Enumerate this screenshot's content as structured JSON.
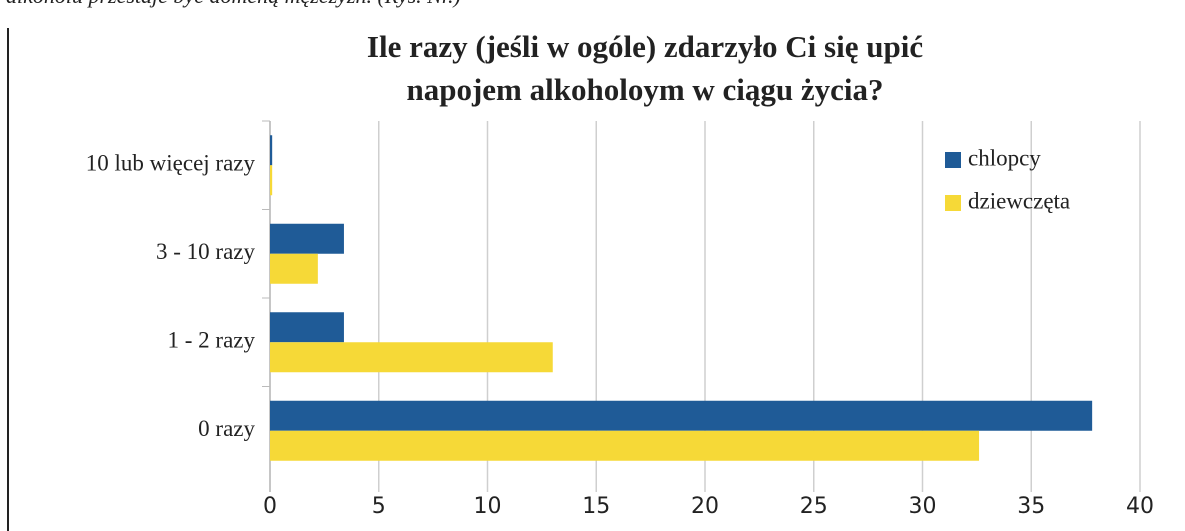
{
  "caption": "alkoholu przestaje być domeną mężczyzn. (Rys. Nr.)",
  "chart_data": {
    "type": "bar",
    "orientation": "horizontal",
    "title": [
      "Ile razy (jeśli w ogóle) zdarzyło Ci się upić",
      "napojem alkoholoym w ciągu życia?"
    ],
    "categories": [
      "10 lub więcej razy",
      "3 - 10 razy",
      "1 - 2 razy",
      "0 razy"
    ],
    "series": [
      {
        "name": "chlopcy",
        "color": "#1f5b97",
        "values": [
          0.1,
          3.4,
          3.4,
          37.8
        ]
      },
      {
        "name": "dziewczęta",
        "color": "#f6d937",
        "values": [
          0.1,
          2.2,
          13.0,
          32.6
        ]
      }
    ],
    "xlim": [
      0,
      40
    ],
    "xticks": [
      0,
      5,
      10,
      15,
      20,
      25,
      30,
      35,
      40
    ],
    "grid": true,
    "legend": "top-right"
  }
}
